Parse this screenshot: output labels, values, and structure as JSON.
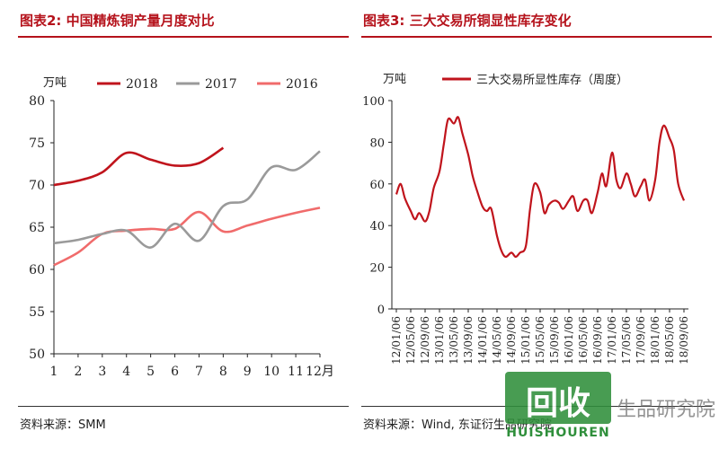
{
  "figures": [
    {
      "title": "图表2: 中国精炼铜产量月度对比",
      "source": "资料来源：SMM"
    },
    {
      "title": "图表3: 三大交易所铜显性库存变化",
      "source": "资料来源：Wind, 东证衍生品研究院"
    }
  ],
  "watermark": {
    "logo_text": "回收",
    "sub_text": "HUISHOUREN",
    "right_text": "生品研究院"
  },
  "chart_data": [
    {
      "type": "line",
      "unit_label": "万吨",
      "x": [
        1,
        2,
        3,
        4,
        5,
        6,
        7,
        8,
        9,
        10,
        11,
        12
      ],
      "xtick_labels": [
        "1",
        "2",
        "3",
        "4",
        "5",
        "6",
        "7",
        "8",
        "9",
        "10",
        "11",
        "12月"
      ],
      "ylim": [
        50,
        80
      ],
      "yticks": [
        50,
        55,
        60,
        65,
        70,
        75,
        80
      ],
      "legend_position": "top",
      "series": [
        {
          "name": "2018",
          "color": "#c0141c",
          "x": [
            1,
            2,
            3,
            4,
            5,
            6,
            7,
            8
          ],
          "values": [
            70.0,
            70.5,
            71.5,
            73.8,
            73.0,
            72.3,
            72.6,
            74.4
          ]
        },
        {
          "name": "2017",
          "color": "#9a9a9a",
          "x": [
            1,
            2,
            3,
            4,
            5,
            6,
            7,
            8,
            9,
            10,
            11,
            12
          ],
          "values": [
            63.1,
            63.5,
            64.2,
            64.6,
            62.6,
            65.4,
            63.4,
            67.5,
            68.3,
            72.1,
            71.8,
            74.0
          ]
        },
        {
          "name": "2016",
          "color": "#f06b6b",
          "x": [
            1,
            2,
            3,
            4,
            5,
            6,
            7,
            8,
            9,
            10,
            11,
            12
          ],
          "values": [
            60.5,
            62.0,
            64.2,
            64.6,
            64.8,
            64.8,
            66.8,
            64.5,
            65.2,
            66.0,
            66.7,
            67.3
          ]
        }
      ]
    },
    {
      "type": "line",
      "unit_label": "万吨",
      "ylim": [
        0,
        100
      ],
      "yticks": [
        0,
        20,
        40,
        60,
        80,
        100
      ],
      "xtick_labels": [
        "12/01/06",
        "12/05/06",
        "12/09/06",
        "13/01/06",
        "13/05/06",
        "13/09/06",
        "14/01/06",
        "14/05/06",
        "14/09/06",
        "15/01/06",
        "15/05/06",
        "15/09/06",
        "16/01/06",
        "16/05/06",
        "16/09/06",
        "17/01/06",
        "17/05/06",
        "17/09/06",
        "18/01/06",
        "18/05/06",
        "18/09/06"
      ],
      "legend_position": "top",
      "series": [
        {
          "name": "三大交易所显性库存（周度）",
          "color": "#c0141c",
          "x": [
            0,
            0.3,
            0.6,
            1,
            1.3,
            1.6,
            2,
            2.3,
            2.6,
            3,
            3.3,
            3.6,
            4,
            4.3,
            4.6,
            5,
            5.3,
            5.6,
            6,
            6.3,
            6.6,
            7,
            7.3,
            7.6,
            8,
            8.3,
            8.6,
            9,
            9.3,
            9.6,
            10,
            10.3,
            10.6,
            11,
            11.3,
            11.6,
            12,
            12.3,
            12.6,
            13,
            13.3,
            13.6,
            14,
            14.3,
            14.6,
            15,
            15.3,
            15.6,
            16,
            16.3,
            16.6,
            17,
            17.3,
            17.6,
            18,
            18.3,
            18.6,
            19,
            19.3,
            19.6,
            20
          ],
          "values": [
            55,
            60,
            53,
            47,
            43,
            46,
            42,
            47,
            58,
            66,
            79,
            91,
            89,
            92,
            84,
            74,
            64,
            57,
            49,
            47,
            48,
            35,
            28,
            25,
            27,
            25,
            27,
            30,
            48,
            60,
            56,
            46,
            50,
            52,
            51,
            48,
            52,
            54,
            47,
            52,
            52,
            46,
            56,
            65,
            59,
            75,
            62,
            58,
            65,
            60,
            54,
            59,
            62,
            52,
            62,
            80,
            88,
            82,
            76,
            60,
            52
          ]
        }
      ]
    }
  ]
}
